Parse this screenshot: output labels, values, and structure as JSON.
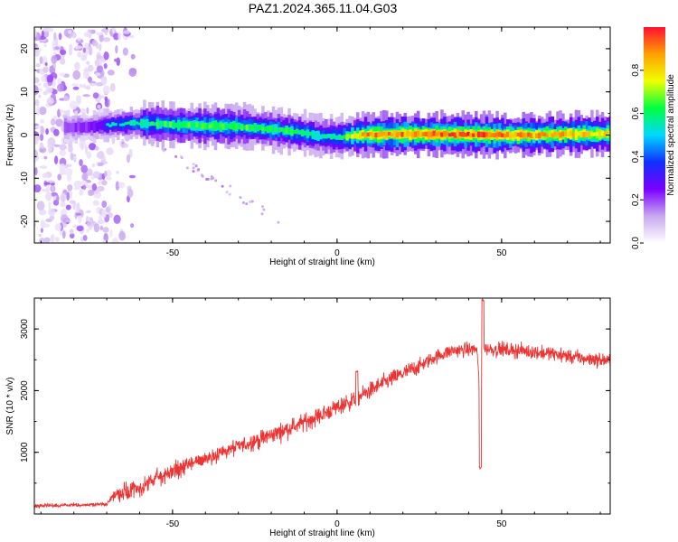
{
  "title": "PAZ1.2024.365.11.04.G03",
  "colors": {
    "snr_line": "#ee3333",
    "axis": "#000000",
    "background": "#ffffff"
  },
  "chart_data": [
    {
      "type": "heatmap",
      "xlabel": "Height of straight line (km)",
      "ylabel": "Frequency (Hz)",
      "xlim": [
        -92,
        83
      ],
      "ylim": [
        -25,
        25
      ],
      "x_ticks": [
        -50,
        0,
        50
      ],
      "x_tick_labels": [
        "-50",
        "0",
        "50"
      ],
      "y_ticks": [
        -20,
        -10,
        0,
        10,
        20
      ],
      "y_tick_labels": [
        "-20",
        "-10",
        "0",
        "10",
        "20"
      ],
      "colorbar": {
        "label": "Normalized spectral amplitude",
        "range": [
          0,
          1
        ],
        "ticks": [
          0.0,
          0.2,
          0.4,
          0.6,
          0.8
        ],
        "tick_labels": [
          "0.0",
          "0.2",
          "0.4",
          "0.6",
          "0.8"
        ],
        "colormap": "rainbow",
        "colormap_stops": [
          "#ffffff",
          "#c8a8f0",
          "#7a00ff",
          "#1030ff",
          "#00d8ff",
          "#00ff40",
          "#f0ff00",
          "#ffa000",
          "#ff1030"
        ]
      },
      "ridge": {
        "x": [
          -83,
          -75,
          -70,
          -65,
          -60,
          -55,
          -50,
          -45,
          -40,
          -35,
          -30,
          -25,
          -20,
          -15,
          -10,
          -5,
          0,
          5,
          10,
          20,
          30,
          40,
          50,
          60,
          70,
          83
        ],
        "freq": [
          1.8,
          1.9,
          2.3,
          2.6,
          2.7,
          2.6,
          2.4,
          2.3,
          2.2,
          2.1,
          2.0,
          1.7,
          1.3,
          0.9,
          0.4,
          -0.3,
          -0.5,
          -0.1,
          0.1,
          0.2,
          0.2,
          0.1,
          0.0,
          0.0,
          0.2,
          0.3
        ],
        "amplitude": [
          0.3,
          0.35,
          0.5,
          0.55,
          0.6,
          0.6,
          0.62,
          0.65,
          0.65,
          0.65,
          0.65,
          0.6,
          0.6,
          0.6,
          0.6,
          0.55,
          0.55,
          0.75,
          0.9,
          0.9,
          0.9,
          0.92,
          0.9,
          0.85,
          0.85,
          0.8
        ]
      },
      "noise_region_x": [
        -92,
        -62
      ],
      "faint_branch": {
        "x": [
          -60,
          -17
        ],
        "freq": [
          0,
          -20
        ]
      }
    },
    {
      "type": "line",
      "xlabel": "Height of straight line (km)",
      "ylabel": "SNR (10 * v/v)",
      "xlim": [
        -92,
        83
      ],
      "ylim": [
        0,
        3500
      ],
      "x_ticks": [
        -50,
        0,
        50
      ],
      "x_tick_labels": [
        "-50",
        "0",
        "50"
      ],
      "y_ticks": [
        1000,
        2000,
        3000
      ],
      "y_tick_labels": [
        "1000",
        "2000",
        "3000"
      ],
      "trend": {
        "x": [
          -92,
          -80,
          -70,
          -68,
          -60,
          -55,
          -45,
          -35,
          -25,
          -15,
          -5,
          0,
          5,
          15,
          25,
          30,
          35,
          45,
          55,
          65,
          75,
          83
        ],
        "y": [
          130,
          140,
          160,
          300,
          400,
          580,
          800,
          1000,
          1180,
          1380,
          1600,
          1730,
          1850,
          2150,
          2400,
          2550,
          2650,
          2680,
          2650,
          2600,
          2520,
          2480
        ]
      },
      "spikes": [
        {
          "x": 43.5,
          "y": 750
        },
        {
          "x": 44.3,
          "y": 3470
        },
        {
          "x": 6.0,
          "y": 2300
        }
      ]
    }
  ]
}
